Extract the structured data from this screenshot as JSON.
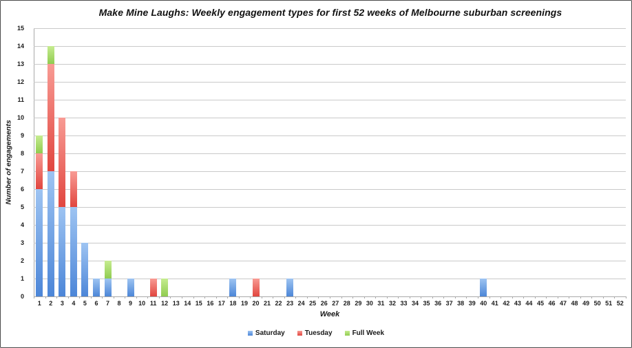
{
  "chart_data": {
    "type": "bar",
    "stacked": true,
    "title": "Make Mine Laughs: Weekly engagement types for first 52 weeks of Melbourne suburban screenings",
    "xlabel": "Week",
    "ylabel": "Number of engagements",
    "ylim": [
      0,
      15
    ],
    "yticks": [
      0,
      1,
      2,
      3,
      4,
      5,
      6,
      7,
      8,
      9,
      10,
      11,
      12,
      13,
      14,
      15
    ],
    "grid": true,
    "legend_position": "bottom",
    "categories": [
      "1",
      "2",
      "3",
      "4",
      "5",
      "6",
      "7",
      "8",
      "9",
      "10",
      "11",
      "12",
      "13",
      "14",
      "15",
      "16",
      "17",
      "18",
      "19",
      "20",
      "21",
      "22",
      "23",
      "24",
      "25",
      "26",
      "27",
      "28",
      "29",
      "30",
      "31",
      "32",
      "33",
      "34",
      "35",
      "36",
      "37",
      "38",
      "39",
      "40",
      "41",
      "42",
      "43",
      "44",
      "45",
      "46",
      "47",
      "48",
      "49",
      "50",
      "51",
      "52"
    ],
    "series": [
      {
        "name": "Saturday",
        "color_top": "#9EC4F2",
        "color_bottom": "#4C86D8",
        "values": [
          6,
          7,
          5,
          5,
          3,
          1,
          1,
          0,
          1,
          0,
          0,
          0,
          0,
          0,
          0,
          0,
          0,
          1,
          0,
          0,
          0,
          0,
          1,
          0,
          0,
          0,
          0,
          0,
          0,
          0,
          0,
          0,
          0,
          0,
          0,
          0,
          0,
          0,
          0,
          1,
          0,
          0,
          0,
          0,
          0,
          0,
          0,
          0,
          0,
          0,
          0,
          0
        ]
      },
      {
        "name": "Tuesday",
        "color_top": "#F89B94",
        "color_bottom": "#E1463F",
        "values": [
          2,
          6,
          5,
          2,
          0,
          0,
          0,
          0,
          0,
          0,
          1,
          0,
          0,
          0,
          0,
          0,
          0,
          0,
          0,
          1,
          0,
          0,
          0,
          0,
          0,
          0,
          0,
          0,
          0,
          0,
          0,
          0,
          0,
          0,
          0,
          0,
          0,
          0,
          0,
          0,
          0,
          0,
          0,
          0,
          0,
          0,
          0,
          0,
          0,
          0,
          0,
          0
        ]
      },
      {
        "name": "Full Week",
        "color_top": "#C6EC90",
        "color_bottom": "#90CC50",
        "values": [
          1,
          1,
          0,
          0,
          0,
          0,
          1,
          0,
          0,
          0,
          0,
          1,
          0,
          0,
          0,
          0,
          0,
          0,
          0,
          0,
          0,
          0,
          0,
          0,
          0,
          0,
          0,
          0,
          0,
          0,
          0,
          0,
          0,
          0,
          0,
          0,
          0,
          0,
          0,
          0,
          0,
          0,
          0,
          0,
          0,
          0,
          0,
          0,
          0,
          0,
          0,
          0
        ]
      }
    ]
  }
}
